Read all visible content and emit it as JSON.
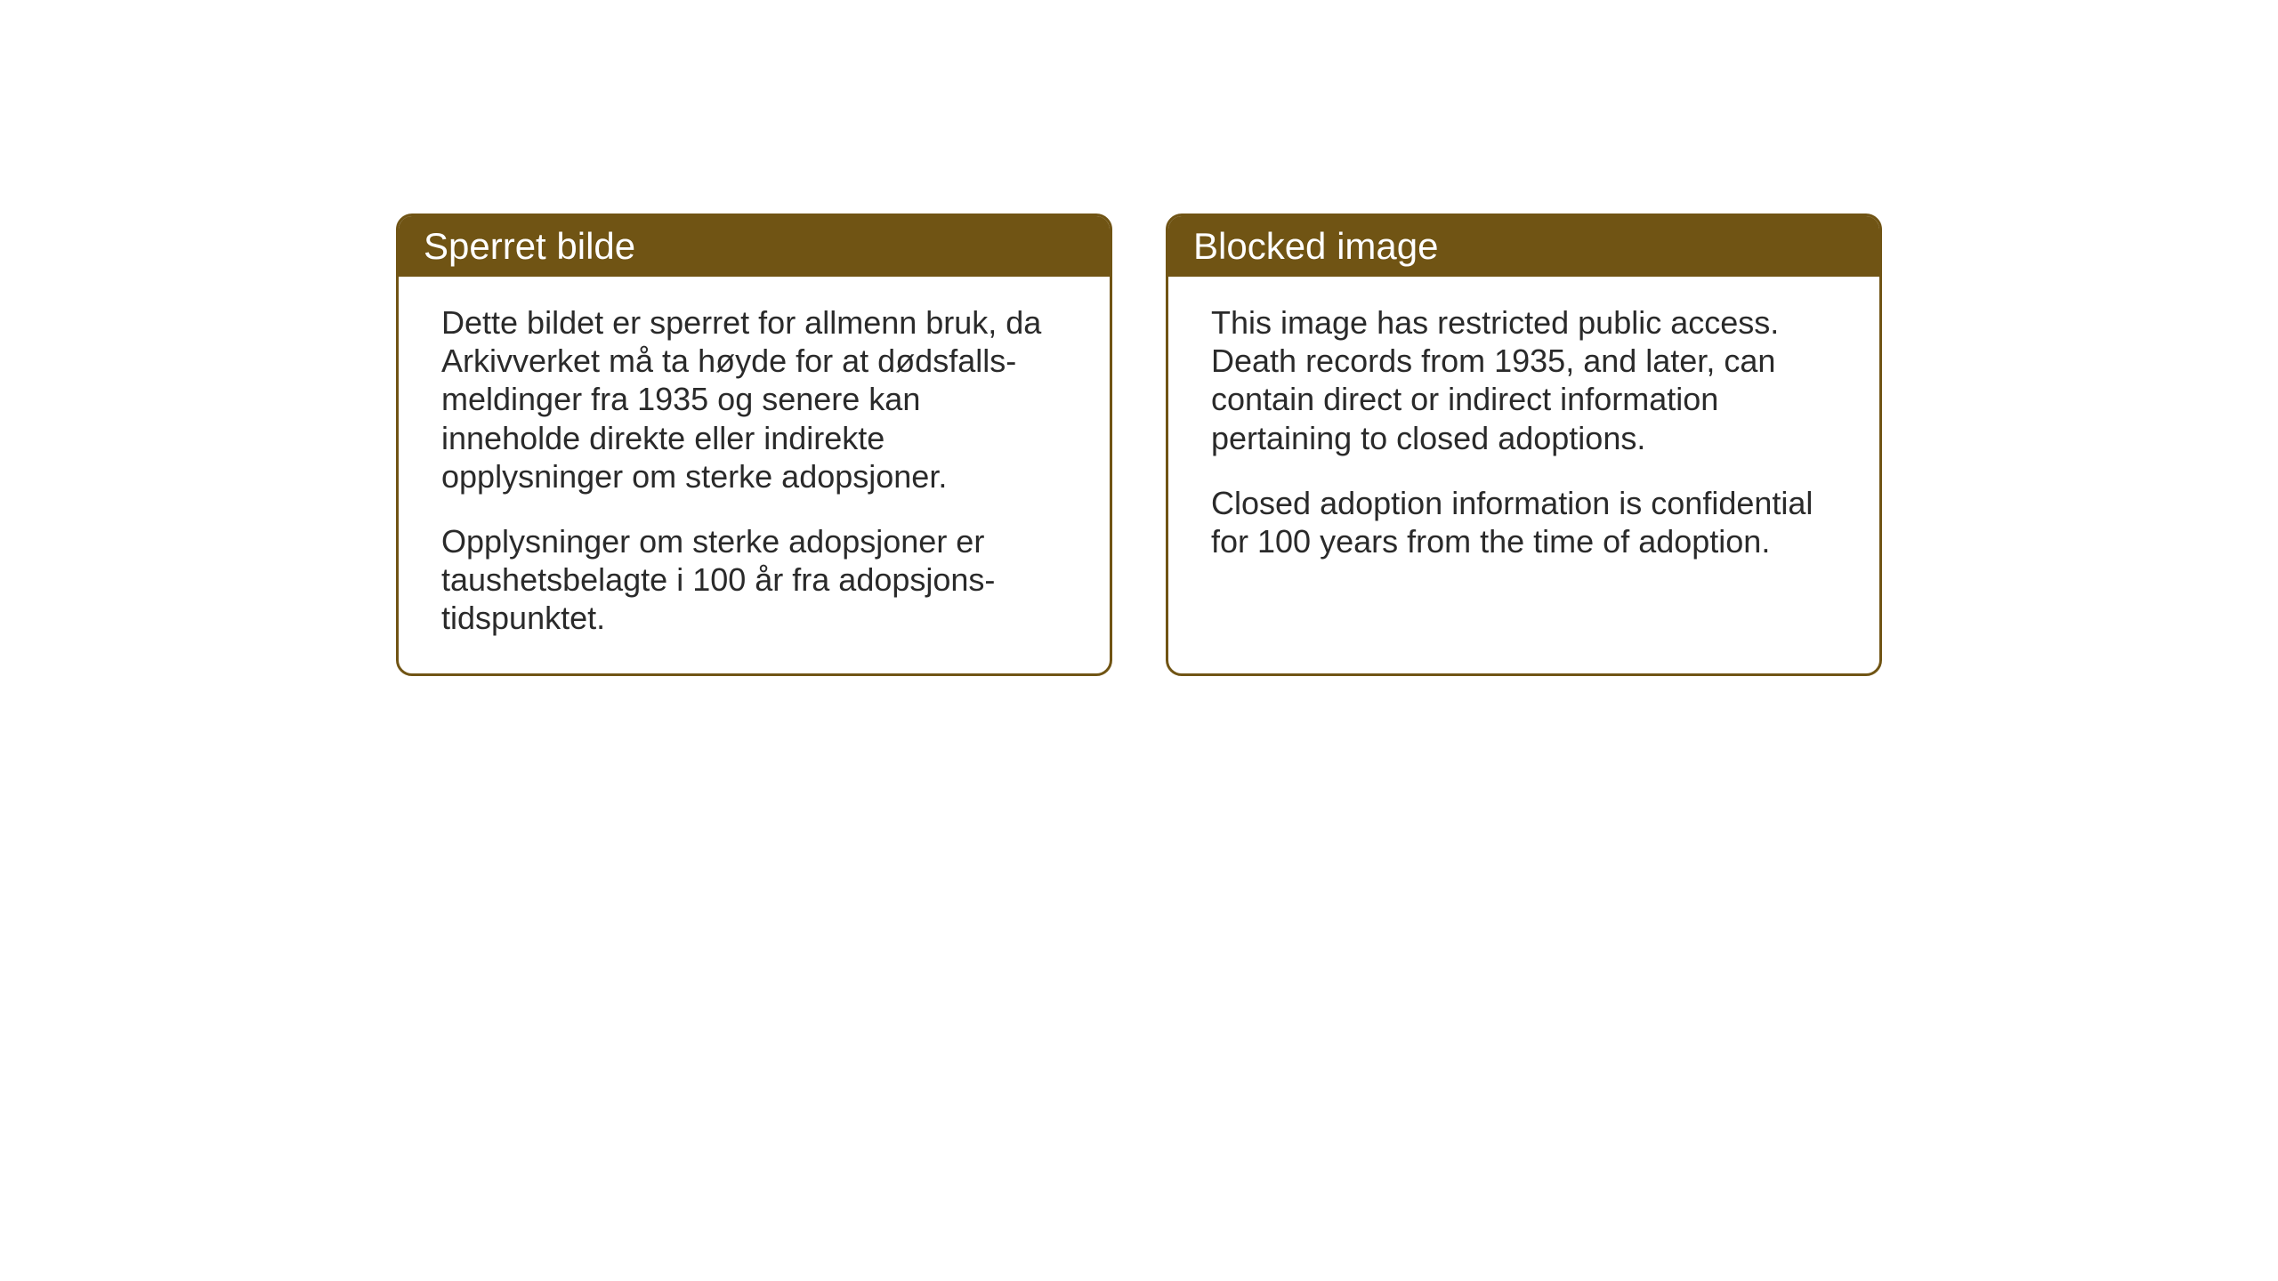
{
  "layout": {
    "background_color": "#ffffff",
    "card_border_color": "#705414",
    "card_header_bg": "#705414",
    "card_header_text_color": "#ffffff",
    "card_body_text_color": "#2a2a2a",
    "card_border_radius": 18,
    "card_border_width": 3,
    "header_fontsize": 42,
    "body_fontsize": 36
  },
  "cards": {
    "norwegian": {
      "title": "Sperret bilde",
      "paragraph1": "Dette bildet er sperret for allmenn bruk, da Arkivverket må ta høyde for at dødsfalls-meldinger fra 1935 og senere kan inneholde direkte eller indirekte opplysninger om sterke adopsjoner.",
      "paragraph2": "Opplysninger om sterke adopsjoner er taushetsbelagte i 100 år fra adopsjons-tidspunktet."
    },
    "english": {
      "title": "Blocked image",
      "paragraph1": "This image has restricted public access. Death records from 1935, and later, can contain direct or indirect information pertaining to closed adoptions.",
      "paragraph2": "Closed adoption information is confidential for 100 years from the time of adoption."
    }
  }
}
